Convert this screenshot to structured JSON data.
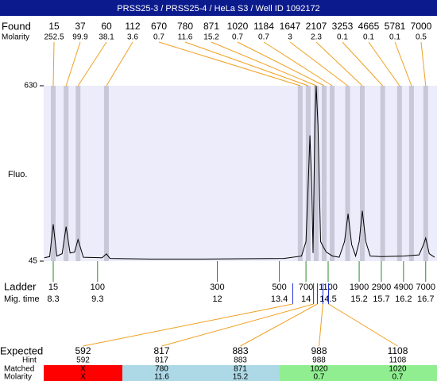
{
  "chart_data": {
    "type": "line",
    "title": "PRSS25-3 / PRSS25-4 / HeLa S3 / Well ID 1092172",
    "y_label": "Fluo.",
    "xlim": [
      8.085,
      16.955
    ],
    "ylim": [
      45,
      630
    ],
    "yticks": [
      45,
      630
    ],
    "x": [
      8.1,
      8.22,
      8.3,
      8.38,
      8.5,
      8.59,
      8.68,
      8.78,
      8.86,
      8.98,
      9.4,
      9.5,
      9.58,
      10.5,
      11.5,
      12.5,
      13.5,
      13.9,
      14.0,
      14.05,
      14.09,
      14.13,
      14.16,
      14.2,
      14.23,
      14.27,
      14.33,
      14.4,
      14.46,
      14.6,
      14.75,
      14.87,
      14.95,
      15.03,
      15.12,
      15.2,
      15.27,
      15.35,
      15.45,
      15.7,
      16.2,
      16.55,
      16.65,
      16.7,
      16.78,
      16.9
    ],
    "values": [
      56,
      60,
      168,
      62,
      70,
      160,
      72,
      75,
      117,
      58,
      56,
      69,
      54,
      52,
      52,
      53,
      54,
      62,
      110,
      300,
      464,
      300,
      72,
      500,
      630,
      500,
      110,
      90,
      75,
      62,
      58,
      110,
      203,
      100,
      62,
      110,
      213,
      110,
      62,
      60,
      62,
      66,
      100,
      122,
      70,
      58
    ],
    "color": "#000000",
    "found": {
      "label": "Found",
      "molarity_label": "Molarity",
      "sizes": [
        15,
        37,
        60,
        112,
        670,
        780,
        871,
        1020,
        1184,
        1647,
        2107,
        3253,
        4665,
        5781,
        7000
      ],
      "molarity": [
        252.5,
        99.9,
        38.1,
        3.6,
        0.7,
        11.6,
        15.2,
        0.7,
        0.7,
        3,
        2.3,
        0.1,
        0.1,
        0.1,
        0.5
      ],
      "times": [
        8.3,
        8.59,
        8.86,
        9.5,
        13.87,
        14.05,
        14.23,
        14.41,
        14.59,
        14.94,
        15.27,
        15.73,
        16.11,
        16.38,
        16.7
      ]
    },
    "ladder": {
      "label": "Ladder",
      "time_label": "Mig. time",
      "sizes": [
        15,
        100,
        300,
        500,
        700,
        1100,
        1900,
        2900,
        4900,
        7000
      ],
      "times": [
        8.3,
        9.3,
        12,
        13.4,
        14,
        14.5,
        15.2,
        15.7,
        16.2,
        16.7
      ]
    },
    "expected": {
      "label": "Expected",
      "hint_label": "Hint",
      "matched_label": "Matched",
      "molarity_label": "Molarity",
      "sizes": [
        592,
        817,
        883,
        988,
        1108
      ],
      "hints": [
        592,
        817,
        883,
        988,
        1108
      ],
      "matched": [
        "X",
        780,
        871,
        1020,
        1020
      ],
      "molarity": [
        "X",
        11.6,
        15.2,
        0.7,
        0.7
      ],
      "colors": [
        "#ff0000",
        "#add8e6",
        "#add8e6",
        "#90ee90",
        "#90ee90"
      ]
    }
  }
}
